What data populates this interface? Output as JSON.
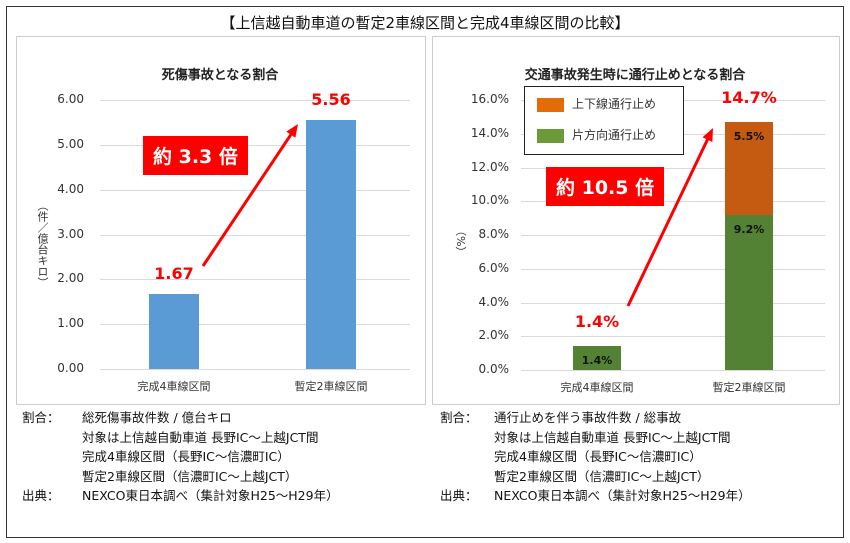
{
  "page_title": "【上信越自動車道の暫定2車線区間と完成4車線区間の比較】",
  "chart_data": [
    {
      "type": "bar",
      "title": "死傷事故となる割合",
      "ylabel": "（件／億台キロ）",
      "ylim": [
        0,
        6
      ],
      "yticks": [
        "0.00",
        "1.00",
        "2.00",
        "3.00",
        "4.00",
        "5.00",
        "6.00"
      ],
      "categories": [
        "完成4車線区間",
        "暫定2車線区間"
      ],
      "values": [
        1.67,
        5.56
      ],
      "data_labels": [
        "1.67",
        "5.56"
      ],
      "grid": true,
      "bar_color": "#5b9bd5",
      "annotation": "約 3.3 倍"
    },
    {
      "type": "bar",
      "stacked": true,
      "title": "交通事故発生時に通行止めとなる割合",
      "ylabel": "（%）",
      "ylim": [
        0,
        16
      ],
      "yticks": [
        "0.0%",
        "2.0%",
        "4.0%",
        "6.0%",
        "8.0%",
        "10.0%",
        "12.0%",
        "14.0%",
        "16.0%"
      ],
      "categories": [
        "完成4車線区間",
        "暫定2車線区間"
      ],
      "series": [
        {
          "name": "片方向通行止め",
          "values": [
            1.4,
            9.2
          ],
          "labels": [
            "1.4%",
            "9.2%"
          ],
          "color": "#548235"
        },
        {
          "name": "上下線通行止め",
          "values": [
            0,
            5.5
          ],
          "labels": [
            "",
            "5.5%"
          ],
          "color": "#c55a11"
        }
      ],
      "totals": [
        "1.4%",
        "14.7%"
      ],
      "legend_placement": "top-left",
      "legend_colors": [
        "#e36c09",
        "#6a9a3a"
      ],
      "grid": true,
      "annotation": "約 10.5 倍"
    }
  ],
  "notes": {
    "left": {
      "ratio_key": "割合：",
      "ratio": "総死傷事故件数 / 億台キロ",
      "lines": [
        "対象は上信越自動車道 長野IC～上越JCT間",
        "完成4車線区間（長野IC～信濃町IC）",
        "暫定2車線区間（信濃町IC～上越JCT）"
      ],
      "source_key": "出典：",
      "source": "NEXCO東日本調べ（集計対象H25～H29年）"
    },
    "right": {
      "ratio_key": "割合：",
      "ratio": "通行止めを伴う事故件数 / 総事故",
      "lines": [
        "対象は上信越自動車道 長野IC～上越JCT間",
        "完成4車線区間（長野IC～信濃町IC）",
        "暫定2車線区間（信濃町IC～上越JCT）"
      ],
      "source_key": "出典：",
      "source": "NEXCO東日本調べ（集計対象H25～H29年）"
    }
  },
  "colors": {
    "accent_red": "#ff0000"
  }
}
